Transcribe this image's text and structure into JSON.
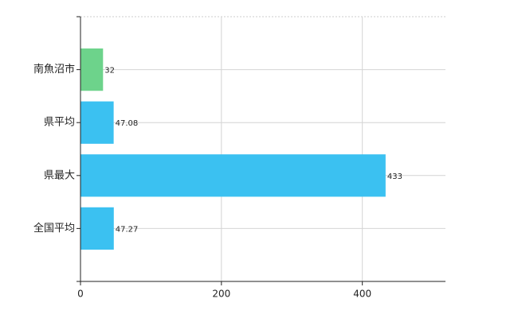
{
  "chart_data": {
    "type": "hbar",
    "categories": [
      "南魚沼市",
      "県平均",
      "県最大",
      "全国平均"
    ],
    "values": [
      32,
      47.08,
      433,
      47.27
    ],
    "colors": [
      "#6dd38b",
      "#3bc1f1",
      "#3bc1f1",
      "#3bc1f1"
    ],
    "xlim": [
      0,
      518
    ],
    "xticks": [
      0,
      200,
      400
    ],
    "grid": true
  }
}
